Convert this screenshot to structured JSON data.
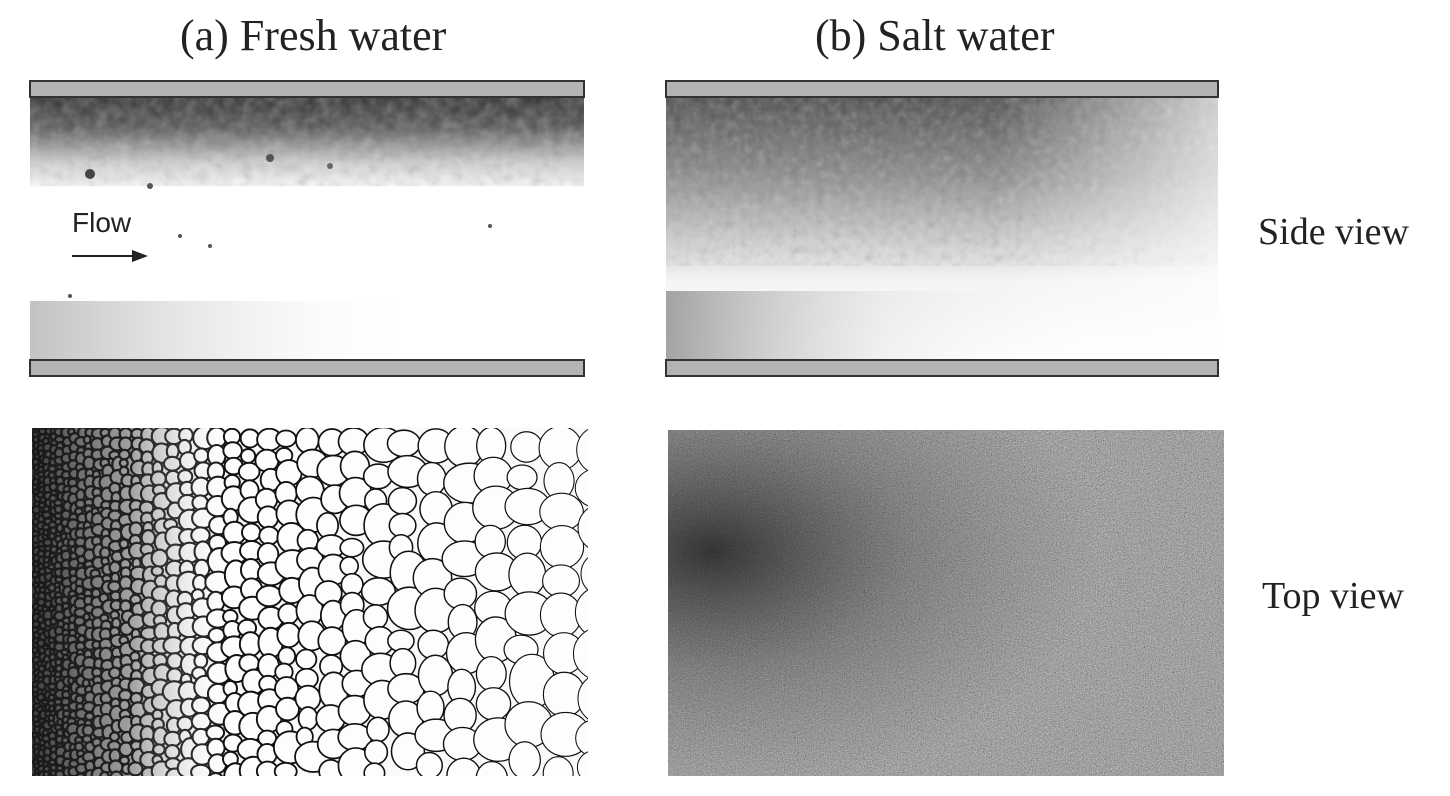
{
  "titles": {
    "a": "(a) Fresh water",
    "b": "(b) Salt water"
  },
  "row_labels": {
    "side": "Side view",
    "top": "Top view"
  },
  "annotation": {
    "flow": "Flow"
  },
  "colors": {
    "plate_fill": "#b3b3b3",
    "plate_border": "#333333",
    "text": "#222222"
  }
}
